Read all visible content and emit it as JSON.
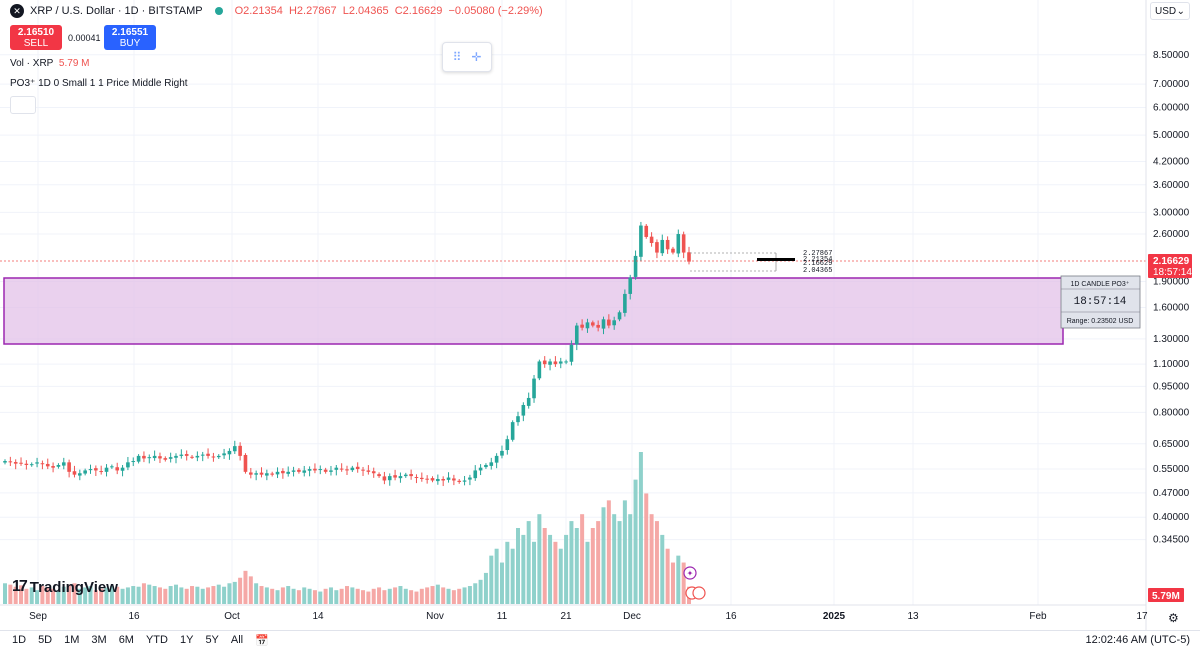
{
  "header": {
    "symbol_title": "XRP / U.S. Dollar · 1D · BITSTAMP",
    "symbol_icon": "xrp-logo-icon",
    "o": "O2.21354",
    "h": "H2.27867",
    "l": "L2.04365",
    "c": "C2.16629",
    "change": "−0.05080 (−2.29%)"
  },
  "trade": {
    "sell_price": "2.16510",
    "sell_label": "SELL",
    "spread": "0.00041",
    "buy_price": "2.16551",
    "buy_label": "BUY"
  },
  "indicators": {
    "vol_label": "Vol · XRP",
    "vol_value": "5.79 M",
    "po3_label": "PO3⁺ 1D 0 Small 1 1 Price Middle Right"
  },
  "currency": "USD",
  "timeframes": [
    "1D",
    "5D",
    "1M",
    "3M",
    "6M",
    "YTD",
    "1Y",
    "5Y",
    "All"
  ],
  "clock": "12:02:46 AM (UTC-5)",
  "brand": "TradingView",
  "chart_data": {
    "type": "candlestick",
    "y_scale": "log",
    "price_axis_labels": [
      "8.50000",
      "7.00000",
      "6.00000",
      "5.00000",
      "4.20000",
      "3.60000",
      "3.00000",
      "2.60000",
      "1.90000",
      "1.60000",
      "1.30000",
      "1.10000",
      "0.95000",
      "0.80000",
      "0.65000",
      "0.55000",
      "0.47000",
      "0.40000",
      "0.34500"
    ],
    "time_axis_labels": [
      "Sep",
      "16",
      "Oct",
      "14",
      "Nov",
      "11",
      "21",
      "Dec",
      "16",
      "2025",
      "13",
      "Feb",
      "17"
    ],
    "last_price_label": "2.16629",
    "countdown_label": "18:57:14",
    "volume_label": "5.79M",
    "po3_box": {
      "title": "1D CANDLE PO3⁺",
      "countdown": "18:57:14",
      "range": "Range: 0.23502 USD",
      "high": "2.27867",
      "open": "2.21354",
      "close": "2.16629",
      "low": "2.04365"
    },
    "zone": {
      "top": 1.92,
      "bottom": 1.31
    },
    "closes": [
      0.58,
      0.575,
      0.57,
      0.572,
      0.565,
      0.568,
      0.575,
      0.57,
      0.56,
      0.555,
      0.565,
      0.575,
      0.54,
      0.53,
      0.535,
      0.545,
      0.55,
      0.545,
      0.54,
      0.555,
      0.56,
      0.545,
      0.555,
      0.575,
      0.58,
      0.6,
      0.59,
      0.595,
      0.6,
      0.59,
      0.585,
      0.595,
      0.6,
      0.605,
      0.6,
      0.595,
      0.6,
      0.605,
      0.6,
      0.595,
      0.6,
      0.61,
      0.62,
      0.64,
      0.6,
      0.54,
      0.53,
      0.535,
      0.53,
      0.535,
      0.53,
      0.54,
      0.535,
      0.54,
      0.545,
      0.54,
      0.545,
      0.55,
      0.545,
      0.55,
      0.54,
      0.545,
      0.555,
      0.55,
      0.545,
      0.555,
      0.55,
      0.545,
      0.54,
      0.535,
      0.525,
      0.51,
      0.525,
      0.52,
      0.525,
      0.53,
      0.525,
      0.52,
      0.515,
      0.515,
      0.51,
      0.515,
      0.51,
      0.52,
      0.51,
      0.505,
      0.51,
      0.52,
      0.545,
      0.555,
      0.565,
      0.575,
      0.6,
      0.62,
      0.67,
      0.75,
      0.78,
      0.84,
      0.88,
      1.0,
      1.12,
      1.1,
      1.12,
      1.1,
      1.12,
      1.12,
      1.25,
      1.42,
      1.4,
      1.45,
      1.42,
      1.4,
      1.48,
      1.42,
      1.47,
      1.55,
      1.75,
      1.95,
      2.25,
      2.75,
      2.55,
      2.45,
      2.3,
      2.5,
      2.35,
      2.3,
      2.6,
      2.3,
      2.16629
    ],
    "volumes": [
      30,
      28,
      25,
      27,
      22,
      24,
      20,
      26,
      24,
      22,
      20,
      25,
      28,
      30,
      22,
      24,
      26,
      20,
      22,
      24,
      26,
      25,
      22,
      24,
      26,
      25,
      30,
      28,
      26,
      24,
      22,
      26,
      28,
      24,
      22,
      26,
      25,
      22,
      24,
      26,
      28,
      25,
      30,
      32,
      38,
      48,
      40,
      30,
      26,
      24,
      22,
      20,
      24,
      26,
      22,
      20,
      24,
      22,
      20,
      18,
      22,
      24,
      20,
      22,
      26,
      24,
      22,
      20,
      18,
      22,
      24,
      20,
      22,
      24,
      26,
      22,
      20,
      18,
      22,
      24,
      26,
      28,
      24,
      22,
      20,
      22,
      24,
      26,
      30,
      35,
      45,
      70,
      80,
      60,
      90,
      80,
      110,
      100,
      120,
      90,
      130,
      110,
      100,
      90,
      80,
      100,
      120,
      110,
      130,
      90,
      110,
      120,
      140,
      150,
      130,
      120,
      150,
      130,
      180,
      220,
      160,
      130,
      120,
      100,
      80,
      60,
      70,
      60,
      25
    ]
  }
}
